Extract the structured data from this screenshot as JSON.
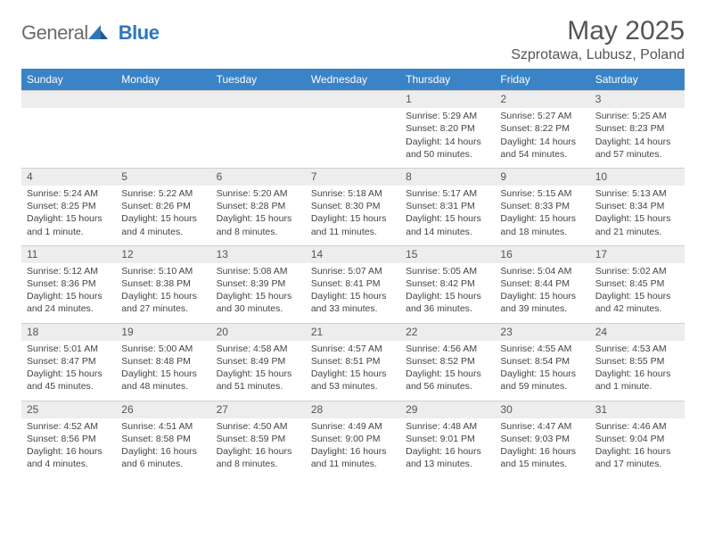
{
  "logo": {
    "text_general": "General",
    "text_blue": "Blue",
    "icon_fill": "#2f77bb"
  },
  "header": {
    "month_title": "May 2025",
    "location": "Szprotawa, Lubusz, Poland",
    "title_fontsize": 30,
    "location_fontsize": 16,
    "title_color": "#555555"
  },
  "colors": {
    "header_row_bg": "#3a83c6",
    "header_row_text": "#ffffff",
    "daynum_bg": "#ededed",
    "daynum_text": "#555555",
    "body_text": "#444444",
    "border": "#cfcfcf",
    "background": "#ffffff"
  },
  "typography": {
    "font_family": "Arial",
    "dayhead_fontsize": 12,
    "daynum_fontsize": 12,
    "cell_fontsize": 10.5
  },
  "day_headers": [
    "Sunday",
    "Monday",
    "Tuesday",
    "Wednesday",
    "Thursday",
    "Friday",
    "Saturday"
  ],
  "weeks": [
    {
      "nums": [
        "",
        "",
        "",
        "",
        "1",
        "2",
        "3"
      ],
      "cells": [
        null,
        null,
        null,
        null,
        {
          "sunrise": "Sunrise: 5:29 AM",
          "sunset": "Sunset: 8:20 PM",
          "day1": "Daylight: 14 hours",
          "day2": "and 50 minutes."
        },
        {
          "sunrise": "Sunrise: 5:27 AM",
          "sunset": "Sunset: 8:22 PM",
          "day1": "Daylight: 14 hours",
          "day2": "and 54 minutes."
        },
        {
          "sunrise": "Sunrise: 5:25 AM",
          "sunset": "Sunset: 8:23 PM",
          "day1": "Daylight: 14 hours",
          "day2": "and 57 minutes."
        }
      ]
    },
    {
      "nums": [
        "4",
        "5",
        "6",
        "7",
        "8",
        "9",
        "10"
      ],
      "cells": [
        {
          "sunrise": "Sunrise: 5:24 AM",
          "sunset": "Sunset: 8:25 PM",
          "day1": "Daylight: 15 hours",
          "day2": "and 1 minute."
        },
        {
          "sunrise": "Sunrise: 5:22 AM",
          "sunset": "Sunset: 8:26 PM",
          "day1": "Daylight: 15 hours",
          "day2": "and 4 minutes."
        },
        {
          "sunrise": "Sunrise: 5:20 AM",
          "sunset": "Sunset: 8:28 PM",
          "day1": "Daylight: 15 hours",
          "day2": "and 8 minutes."
        },
        {
          "sunrise": "Sunrise: 5:18 AM",
          "sunset": "Sunset: 8:30 PM",
          "day1": "Daylight: 15 hours",
          "day2": "and 11 minutes."
        },
        {
          "sunrise": "Sunrise: 5:17 AM",
          "sunset": "Sunset: 8:31 PM",
          "day1": "Daylight: 15 hours",
          "day2": "and 14 minutes."
        },
        {
          "sunrise": "Sunrise: 5:15 AM",
          "sunset": "Sunset: 8:33 PM",
          "day1": "Daylight: 15 hours",
          "day2": "and 18 minutes."
        },
        {
          "sunrise": "Sunrise: 5:13 AM",
          "sunset": "Sunset: 8:34 PM",
          "day1": "Daylight: 15 hours",
          "day2": "and 21 minutes."
        }
      ]
    },
    {
      "nums": [
        "11",
        "12",
        "13",
        "14",
        "15",
        "16",
        "17"
      ],
      "cells": [
        {
          "sunrise": "Sunrise: 5:12 AM",
          "sunset": "Sunset: 8:36 PM",
          "day1": "Daylight: 15 hours",
          "day2": "and 24 minutes."
        },
        {
          "sunrise": "Sunrise: 5:10 AM",
          "sunset": "Sunset: 8:38 PM",
          "day1": "Daylight: 15 hours",
          "day2": "and 27 minutes."
        },
        {
          "sunrise": "Sunrise: 5:08 AM",
          "sunset": "Sunset: 8:39 PM",
          "day1": "Daylight: 15 hours",
          "day2": "and 30 minutes."
        },
        {
          "sunrise": "Sunrise: 5:07 AM",
          "sunset": "Sunset: 8:41 PM",
          "day1": "Daylight: 15 hours",
          "day2": "and 33 minutes."
        },
        {
          "sunrise": "Sunrise: 5:05 AM",
          "sunset": "Sunset: 8:42 PM",
          "day1": "Daylight: 15 hours",
          "day2": "and 36 minutes."
        },
        {
          "sunrise": "Sunrise: 5:04 AM",
          "sunset": "Sunset: 8:44 PM",
          "day1": "Daylight: 15 hours",
          "day2": "and 39 minutes."
        },
        {
          "sunrise": "Sunrise: 5:02 AM",
          "sunset": "Sunset: 8:45 PM",
          "day1": "Daylight: 15 hours",
          "day2": "and 42 minutes."
        }
      ]
    },
    {
      "nums": [
        "18",
        "19",
        "20",
        "21",
        "22",
        "23",
        "24"
      ],
      "cells": [
        {
          "sunrise": "Sunrise: 5:01 AM",
          "sunset": "Sunset: 8:47 PM",
          "day1": "Daylight: 15 hours",
          "day2": "and 45 minutes."
        },
        {
          "sunrise": "Sunrise: 5:00 AM",
          "sunset": "Sunset: 8:48 PM",
          "day1": "Daylight: 15 hours",
          "day2": "and 48 minutes."
        },
        {
          "sunrise": "Sunrise: 4:58 AM",
          "sunset": "Sunset: 8:49 PM",
          "day1": "Daylight: 15 hours",
          "day2": "and 51 minutes."
        },
        {
          "sunrise": "Sunrise: 4:57 AM",
          "sunset": "Sunset: 8:51 PM",
          "day1": "Daylight: 15 hours",
          "day2": "and 53 minutes."
        },
        {
          "sunrise": "Sunrise: 4:56 AM",
          "sunset": "Sunset: 8:52 PM",
          "day1": "Daylight: 15 hours",
          "day2": "and 56 minutes."
        },
        {
          "sunrise": "Sunrise: 4:55 AM",
          "sunset": "Sunset: 8:54 PM",
          "day1": "Daylight: 15 hours",
          "day2": "and 59 minutes."
        },
        {
          "sunrise": "Sunrise: 4:53 AM",
          "sunset": "Sunset: 8:55 PM",
          "day1": "Daylight: 16 hours",
          "day2": "and 1 minute."
        }
      ]
    },
    {
      "nums": [
        "25",
        "26",
        "27",
        "28",
        "29",
        "30",
        "31"
      ],
      "cells": [
        {
          "sunrise": "Sunrise: 4:52 AM",
          "sunset": "Sunset: 8:56 PM",
          "day1": "Daylight: 16 hours",
          "day2": "and 4 minutes."
        },
        {
          "sunrise": "Sunrise: 4:51 AM",
          "sunset": "Sunset: 8:58 PM",
          "day1": "Daylight: 16 hours",
          "day2": "and 6 minutes."
        },
        {
          "sunrise": "Sunrise: 4:50 AM",
          "sunset": "Sunset: 8:59 PM",
          "day1": "Daylight: 16 hours",
          "day2": "and 8 minutes."
        },
        {
          "sunrise": "Sunrise: 4:49 AM",
          "sunset": "Sunset: 9:00 PM",
          "day1": "Daylight: 16 hours",
          "day2": "and 11 minutes."
        },
        {
          "sunrise": "Sunrise: 4:48 AM",
          "sunset": "Sunset: 9:01 PM",
          "day1": "Daylight: 16 hours",
          "day2": "and 13 minutes."
        },
        {
          "sunrise": "Sunrise: 4:47 AM",
          "sunset": "Sunset: 9:03 PM",
          "day1": "Daylight: 16 hours",
          "day2": "and 15 minutes."
        },
        {
          "sunrise": "Sunrise: 4:46 AM",
          "sunset": "Sunset: 9:04 PM",
          "day1": "Daylight: 16 hours",
          "day2": "and 17 minutes."
        }
      ]
    }
  ]
}
